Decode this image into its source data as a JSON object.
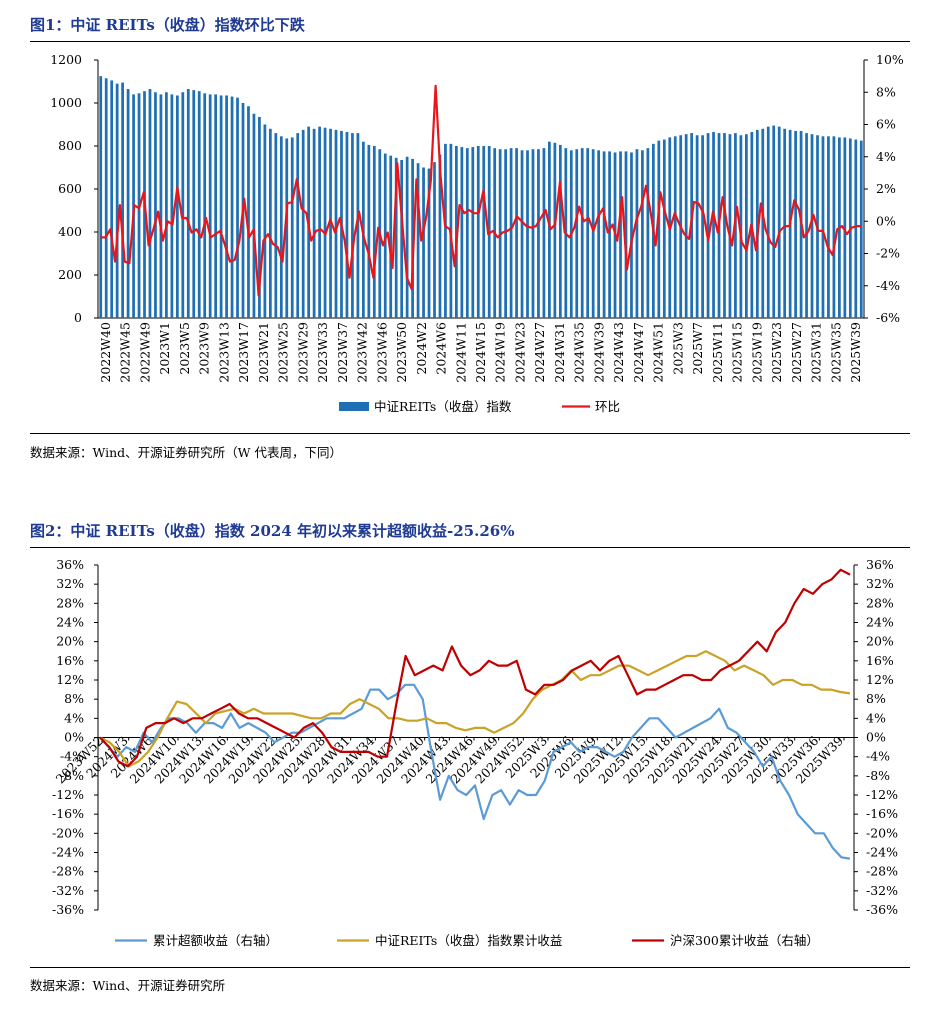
{
  "figure1": {
    "title": "图1：中证 REITs（收盘）指数环比下跌",
    "source": "数据来源：Wind、开源证券研究所（W 代表周，下同）",
    "chart_data": {
      "type": "bar",
      "title": "中证 REITs（收盘）指数环比下跌",
      "left_axis": {
        "range": [
          0,
          1200
        ],
        "ticks": [
          "0",
          "200",
          "400",
          "600",
          "800",
          "1000",
          "1200"
        ]
      },
      "right_axis": {
        "range": [
          -6,
          10
        ],
        "ticks": [
          "-6%",
          "-4%",
          "-2%",
          "0%",
          "2%",
          "4%",
          "6%",
          "8%",
          "10%"
        ]
      },
      "x_tick_labels": [
        "2022W40",
        "2022W45",
        "2022W49",
        "2023W1",
        "2023W5",
        "2023W9",
        "2023W13",
        "2023W17",
        "2023W21",
        "2023W25",
        "2023W29",
        "2023W33",
        "2023W37",
        "2023W42",
        "2023W46",
        "2023W50",
        "2024W2",
        "2024W6",
        "2024W11",
        "2024W15",
        "2024W19",
        "2024W23",
        "2024W27",
        "2024W31",
        "2024W35",
        "2024W39",
        "2024W43",
        "2024W47",
        "2024W51",
        "2025W3",
        "2025W7",
        "2025W11",
        "2025W15",
        "2025W19",
        "2025W23",
        "2025W27",
        "2025W31",
        "2025W35",
        "2025W39"
      ],
      "legend": [
        "中证REITs（收盘）指数",
        "环比"
      ],
      "series": [
        {
          "name": "中证REITs（收盘）指数",
          "type": "bar",
          "axis": "left",
          "values": [
            1125,
            1115,
            1105,
            1090,
            1095,
            1065,
            1040,
            1045,
            1055,
            1065,
            1050,
            1040,
            1050,
            1040,
            1035,
            1050,
            1065,
            1060,
            1055,
            1045,
            1040,
            1040,
            1035,
            1035,
            1030,
            1025,
            1000,
            985,
            950,
            935,
            900,
            880,
            860,
            845,
            835,
            840,
            860,
            875,
            890,
            880,
            890,
            885,
            880,
            875,
            870,
            865,
            860,
            860,
            820,
            805,
            800,
            785,
            765,
            755,
            745,
            735,
            750,
            740,
            720,
            700,
            695,
            725,
            760,
            810,
            810,
            800,
            795,
            790,
            795,
            800,
            800,
            800,
            790,
            785,
            785,
            790,
            790,
            780,
            780,
            785,
            785,
            790,
            820,
            815,
            805,
            790,
            780,
            785,
            790,
            790,
            785,
            780,
            775,
            775,
            770,
            775,
            775,
            770,
            785,
            780,
            790,
            810,
            825,
            830,
            840,
            845,
            850,
            855,
            860,
            850,
            850,
            860,
            865,
            860,
            860,
            855,
            860,
            850,
            855,
            865,
            875,
            880,
            890,
            895,
            890,
            880,
            875,
            870,
            870,
            860,
            855,
            850,
            845,
            845,
            845,
            840,
            840,
            835,
            830,
            825
          ]
        },
        {
          "name": "环比",
          "type": "line",
          "axis": "right",
          "values": [
            -1.0,
            -1.0,
            -0.5,
            -2.5,
            1.0,
            -2.5,
            -2.6,
            1.0,
            0.8,
            1.8,
            -1.5,
            -0.5,
            0.6,
            -1.2,
            0.0,
            -0.2,
            2.1,
            0.2,
            0.2,
            -0.7,
            -0.5,
            -1.0,
            0.2,
            -1.0,
            -0.8,
            -0.6,
            -1.5,
            -2.5,
            -2.4,
            -1.2,
            1.4,
            -1.0,
            -0.5,
            -4.6,
            -1.2,
            -0.8,
            -1.4,
            -1.6,
            -2.5,
            1.1,
            1.2,
            2.6,
            0.8,
            0.5,
            -1.2,
            -0.6,
            -0.5,
            -0.8,
            0.1,
            -0.7,
            0.2,
            -1.2,
            -3.5,
            -1.0,
            0.6,
            -1.0,
            -2.0,
            -3.5,
            -0.4,
            -1.5,
            -0.7,
            -2.9,
            3.6,
            0.0,
            -3.5,
            -4.2,
            2.6,
            -1.2,
            0.2,
            2.5,
            8.4,
            3.0,
            -0.3,
            -0.5,
            -2.8,
            1.0,
            0.5,
            0.7,
            0.5,
            0.5,
            1.9,
            -0.8,
            -0.6,
            -1.0,
            -0.7,
            -0.6,
            -0.4,
            0.3,
            0.0,
            -0.3,
            -0.4,
            -0.3,
            0.2,
            0.7,
            -0.5,
            -0.2,
            2.4,
            -0.7,
            -1.0,
            -0.4,
            0.9,
            0.0,
            0.2,
            -0.6,
            0.3,
            0.8,
            -0.7,
            -0.2,
            -1.2,
            1.5,
            -3.0,
            -1.2,
            0.1,
            0.9,
            2.2,
            0.5,
            -1.5,
            1.8,
            0.5,
            -0.5,
            0.5,
            -0.2,
            -0.8,
            -1.1,
            1.2,
            1.1,
            0.5,
            -1.2,
            0.6,
            -0.7,
            1.5,
            -0.3,
            -1.5,
            0.9,
            -1.3,
            -1.8,
            -0.2,
            -1.8,
            1.1,
            -0.5,
            -1.3,
            -1.6,
            -0.6,
            -0.3,
            -0.3,
            1.3,
            0.7,
            -1.0,
            -0.6,
            0.4,
            -0.6,
            -0.6,
            -1.6,
            -2.1,
            -0.5,
            -0.3,
            -0.8,
            -0.4,
            -0.3,
            -0.3
          ]
        }
      ]
    }
  },
  "figure2": {
    "title": "图2：中证 REITs（收盘）指数 2024 年初以来累计超额收益-25.26%",
    "source": "数据来源：Wind、开源证券研究所",
    "chart_data": {
      "type": "line",
      "title": "中证 REITs（收盘）指数 2024 年初以来累计超额收益-25.26%",
      "left_axis": {
        "range": [
          -36,
          36
        ],
        "ticks": [
          "-36%",
          "-32%",
          "-28%",
          "-24%",
          "-20%",
          "-16%",
          "-12%",
          "-8%",
          "-4%",
          "0%",
          "4%",
          "8%",
          "12%",
          "16%",
          "20%",
          "24%",
          "28%",
          "32%",
          "36%"
        ]
      },
      "right_axis": {
        "range": [
          -36,
          36
        ],
        "ticks": [
          "-36%",
          "-32%",
          "-28%",
          "-24%",
          "-20%",
          "-16%",
          "-12%",
          "-8%",
          "-4%",
          "0%",
          "4%",
          "8%",
          "12%",
          "16%",
          "20%",
          "24%",
          "28%",
          "32%",
          "36%"
        ]
      },
      "x_tick_labels": [
        "2023W52",
        "2024W3",
        "2024W6",
        "2024W10",
        "2024W13",
        "2024W16",
        "2024W19",
        "2024W22",
        "2024W25",
        "2024W28",
        "2024W31",
        "2024W34",
        "2024W37",
        "2024W40",
        "2024W43",
        "2024W46",
        "2024W49",
        "2024W52",
        "2025W3",
        "2025W6",
        "2025W9",
        "2025W12",
        "2025W15",
        "2025W18",
        "2025W21",
        "2025W24",
        "2025W27",
        "2025W30",
        "2025W33",
        "2025W36",
        "2025W39"
      ],
      "legend": [
        "累计超额收益（右轴）",
        "中证REITs（收盘）指数累计收益",
        "沪深300累计收益（右轴）"
      ],
      "series": [
        {
          "name": "累计超额收益（右轴）",
          "color": "#5b9bd5",
          "values": [
            0,
            -2,
            -4,
            -2,
            -3,
            1,
            -1,
            2,
            4,
            4,
            3,
            1,
            3,
            3,
            2,
            5,
            2,
            3,
            2,
            1,
            -1,
            0,
            1,
            1,
            2,
            3,
            4,
            4,
            4,
            5,
            6,
            10,
            10,
            8,
            9,
            11,
            11,
            8,
            -3,
            -13,
            -8,
            -11,
            -12,
            -10,
            -17,
            -12,
            -11,
            -14,
            -11,
            -12,
            -12,
            -9,
            -3,
            -2,
            -1,
            -3,
            -2,
            -2,
            -3,
            -4,
            -3,
            0,
            2,
            4,
            4,
            2,
            0,
            1,
            2,
            3,
            4,
            6,
            2,
            1,
            -1,
            -3,
            -6,
            -4,
            -9,
            -12,
            -16,
            -18,
            -20,
            -20,
            -23,
            -25,
            -25.3
          ]
        },
        {
          "name": "中证REITs（收盘）指数累计收益",
          "color": "#c9a227",
          "values": [
            0,
            -1,
            -3,
            -6,
            -5,
            -3,
            0,
            4,
            7.5,
            7,
            5,
            3,
            5,
            5.5,
            6,
            5,
            6,
            5,
            5,
            5,
            5,
            4.5,
            4,
            4,
            5,
            5,
            7,
            8,
            7,
            6,
            4,
            4,
            3.5,
            3.5,
            4,
            3,
            3,
            2,
            1.5,
            2,
            2,
            1,
            2,
            3,
            5,
            8,
            10,
            11,
            12,
            14,
            12,
            13,
            13,
            14,
            15,
            15,
            14,
            13,
            14,
            15,
            16,
            17,
            17,
            18,
            17,
            16,
            14,
            15,
            14,
            13,
            11,
            12,
            12,
            11,
            11,
            10,
            10,
            9.5,
            9.2
          ]
        },
        {
          "name": "沪深300累计收益（右轴）",
          "color": "#c00000",
          "values": [
            0,
            -2,
            -5,
            -6,
            -4,
            2,
            3,
            3,
            4,
            3,
            4,
            4,
            5,
            6,
            7,
            5,
            4,
            4,
            3,
            2,
            1,
            0,
            2,
            3,
            1,
            -2,
            -3,
            -3,
            -3,
            -3,
            -4,
            -4,
            7,
            17,
            13,
            14,
            15,
            14,
            19,
            15,
            13,
            14,
            16,
            15,
            15,
            16,
            10,
            9,
            11,
            11,
            12,
            14,
            15,
            16,
            14,
            16,
            17,
            13,
            9,
            10,
            10,
            11,
            12,
            13,
            13,
            12,
            12,
            14,
            15,
            16,
            18,
            20,
            18,
            22,
            24,
            28,
            31,
            30,
            32,
            33,
            35,
            34
          ]
        }
      ]
    }
  }
}
